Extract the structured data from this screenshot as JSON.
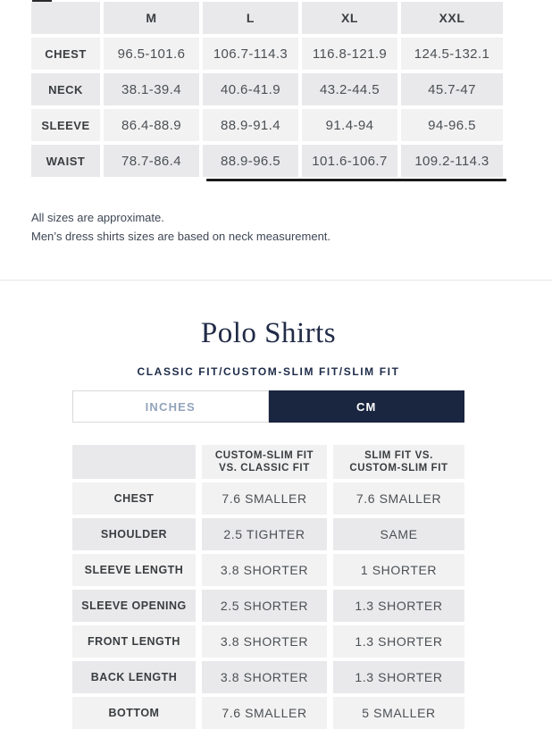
{
  "colors": {
    "navy": "#1a2540",
    "inches_text": "#92a3bb",
    "row_light": "#f2f2f3",
    "row_dark": "#e9e9eb",
    "scrollbar": "#1b1b1b"
  },
  "sizes_table": {
    "columns": [
      "M",
      "L",
      "XL",
      "XXL"
    ],
    "rows": [
      {
        "label": "CHEST",
        "values": [
          "96.5-101.6",
          "106.7-114.3",
          "116.8-121.9",
          "124.5-132.1"
        ]
      },
      {
        "label": "NECK",
        "values": [
          "38.1-39.4",
          "40.6-41.9",
          "43.2-44.5",
          "45.7-47"
        ]
      },
      {
        "label": "SLEEVE",
        "values": [
          "86.4-88.9",
          "88.9-91.4",
          "91.4-94",
          "94-96.5"
        ]
      },
      {
        "label": "WAIST",
        "values": [
          "78.7-86.4",
          "88.9-96.5",
          "101.6-106.7",
          "109.2-114.3"
        ]
      }
    ]
  },
  "notes": {
    "line1": "All sizes are approximate.",
    "line2": "Men’s dress shirts sizes are based on neck measurement."
  },
  "polo_section": {
    "title": "Polo Shirts",
    "subtitle": "CLASSIC FIT/CUSTOM-SLIM FIT/SLIM FIT",
    "toggle": {
      "inches_label": "INCHES",
      "cm_label": "CM",
      "selected": "CM"
    }
  },
  "fit_table": {
    "columns": [
      {
        "line1": "CUSTOM-SLIM FIT",
        "line2": "VS. CLASSIC FIT"
      },
      {
        "line1": "SLIM FIT VS.",
        "line2": "CUSTOM-SLIM FIT"
      }
    ],
    "rows": [
      {
        "label": "CHEST",
        "values": [
          "7.6 SMALLER",
          "7.6 SMALLER"
        ]
      },
      {
        "label": "SHOULDER",
        "values": [
          "2.5 TIGHTER",
          "SAME"
        ]
      },
      {
        "label": "SLEEVE LENGTH",
        "values": [
          "3.8 SHORTER",
          "1 SHORTER"
        ]
      },
      {
        "label": "SLEEVE OPENING",
        "values": [
          "2.5 SHORTER",
          "1.3 SHORTER"
        ]
      },
      {
        "label": "FRONT LENGTH",
        "values": [
          "3.8 SHORTER",
          "1.3 SHORTER"
        ]
      },
      {
        "label": "BACK LENGTH",
        "values": [
          "3.8 SHORTER",
          "1.3 SHORTER"
        ]
      },
      {
        "label": "BOTTOM",
        "values": [
          "7.6 SMALLER",
          "5 SMALLER"
        ]
      }
    ]
  }
}
